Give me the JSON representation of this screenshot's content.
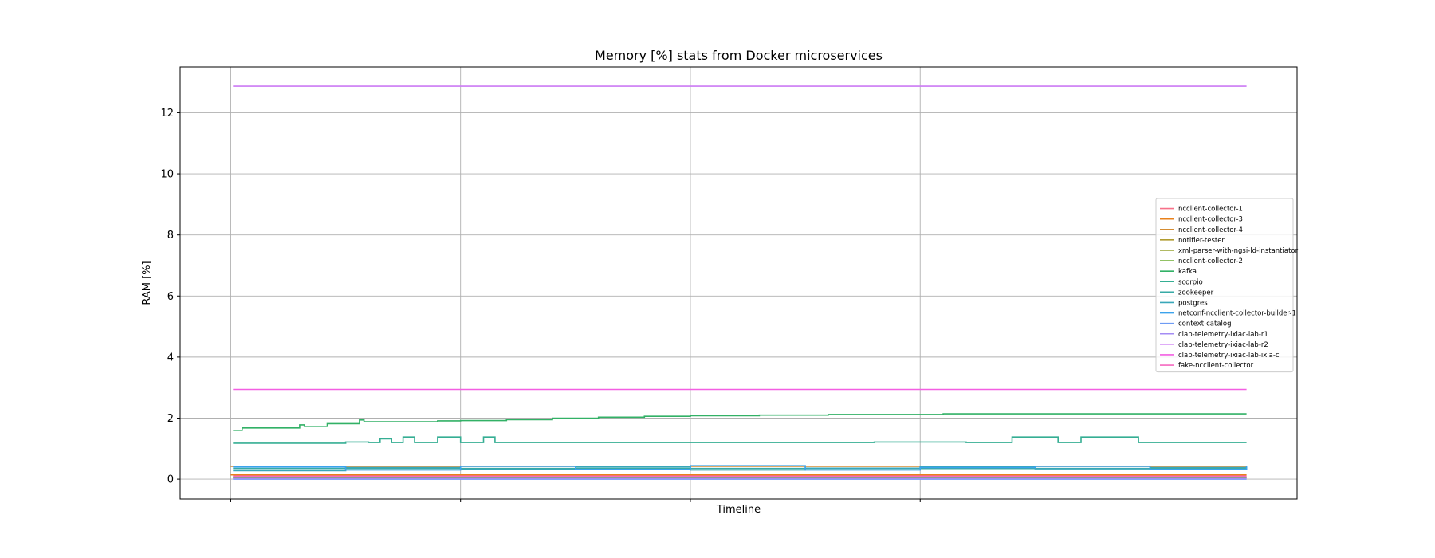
{
  "chart_data": {
    "type": "line",
    "title": "Memory [%] stats from Docker microservices",
    "xlabel": "Timeline",
    "ylabel": "RAM [%]",
    "ylim": [
      -0.65,
      13.5
    ],
    "xlim": [
      -0.22,
      4.64
    ],
    "yticks": [
      0,
      2,
      4,
      6,
      8,
      10,
      12
    ],
    "xticks": [
      0,
      1,
      2,
      3,
      4
    ],
    "xtick_labels": [],
    "grid": true,
    "legend_position": "center-right",
    "series": [
      {
        "name": "ncclient-collector-1",
        "color": "#f77189",
        "x": [
          0.01,
          4.42
        ],
        "y": [
          0.04,
          0.04
        ]
      },
      {
        "name": "ncclient-collector-3",
        "color": "#e9811b",
        "x": [
          0.0,
          4.42
        ],
        "y": [
          0.14,
          0.14
        ]
      },
      {
        "name": "ncclient-collector-4",
        "color": "#d58c32",
        "x": [
          0.0,
          4.42
        ],
        "y": [
          0.42,
          0.42
        ]
      },
      {
        "name": "notifier-tester",
        "color": "#b19c31",
        "x": [
          0.01,
          4.42
        ],
        "y": [
          0.06,
          0.06
        ]
      },
      {
        "name": "xml-parser-with-ngsi-ld-instantiator",
        "color": "#97a431",
        "x": [
          0.01,
          4.42
        ],
        "y": [
          0.08,
          0.08
        ]
      },
      {
        "name": "ncclient-collector-2",
        "color": "#6fad32",
        "x": [
          0.01,
          4.42
        ],
        "y": [
          0.05,
          0.05
        ]
      },
      {
        "name": "kafka",
        "color": "#32b166",
        "x": [
          0.01,
          0.04,
          0.05,
          0.28,
          0.3,
          0.32,
          0.42,
          0.48,
          0.56,
          0.58,
          0.9,
          1.0,
          1.2,
          1.4,
          1.6,
          1.8,
          2.0,
          2.3,
          2.6,
          3.1,
          4.42
        ],
        "y": [
          1.6,
          1.6,
          1.68,
          1.68,
          1.78,
          1.73,
          1.82,
          1.82,
          1.94,
          1.88,
          1.91,
          1.92,
          1.95,
          2.0,
          2.03,
          2.06,
          2.08,
          2.1,
          2.12,
          2.14,
          2.14
        ]
      },
      {
        "name": "scorpio",
        "color": "#35ae93",
        "x": [
          0.01,
          0.45,
          0.5,
          0.6,
          0.65,
          0.7,
          0.75,
          0.8,
          0.9,
          1.0,
          1.1,
          1.15,
          2.5,
          2.8,
          3.2,
          3.4,
          3.6,
          3.7,
          3.95,
          4.42
        ],
        "y": [
          1.18,
          1.18,
          1.22,
          1.2,
          1.32,
          1.2,
          1.38,
          1.2,
          1.38,
          1.2,
          1.38,
          1.2,
          1.2,
          1.22,
          1.2,
          1.38,
          1.2,
          1.38,
          1.2,
          1.2
        ]
      },
      {
        "name": "zookeeper",
        "color": "#37aaa6",
        "x": [
          0.01,
          4.42
        ],
        "y": [
          0.35,
          0.35
        ]
      },
      {
        "name": "postgres",
        "color": "#38a7b9",
        "x": [
          0.01,
          0.5,
          1.0,
          1.5,
          2.0,
          2.5,
          3.0,
          3.5,
          4.0,
          4.42
        ],
        "y": [
          0.28,
          0.38,
          0.32,
          0.4,
          0.3,
          0.36,
          0.4,
          0.34,
          0.38,
          0.3
        ]
      },
      {
        "name": "netconf-ncclient-collector-builder-1",
        "color": "#3ba3ec",
        "x": [
          0.01,
          0.5,
          1.0,
          1.5,
          2.0,
          2.5,
          3.0,
          3.5,
          4.0,
          4.42
        ],
        "y": [
          0.4,
          0.3,
          0.42,
          0.32,
          0.44,
          0.3,
          0.38,
          0.42,
          0.32,
          0.42
        ]
      },
      {
        "name": "context-catalog",
        "color": "#6e9bf4",
        "x": [
          0.01,
          4.42
        ],
        "y": [
          0.0,
          0.0
        ]
      },
      {
        "name": "clab-telemetry-ixiac-lab-r1",
        "color": "#a48cf4",
        "x": [
          0.01,
          4.42
        ],
        "y": [
          0.02,
          0.02
        ]
      },
      {
        "name": "clab-telemetry-ixiac-lab-r2",
        "color": "#cc7af4",
        "x": [
          0.01,
          4.42
        ],
        "y": [
          12.87,
          12.87
        ]
      },
      {
        "name": "clab-telemetry-ixiac-lab-ixia-c",
        "color": "#f35fe2",
        "x": [
          0.01,
          4.42
        ],
        "y": [
          2.94,
          2.94
        ]
      },
      {
        "name": "fake-ncclient-collector",
        "color": "#f569c1",
        "x": [
          0.01,
          4.42
        ],
        "y": [
          0.1,
          0.1
        ]
      }
    ]
  }
}
